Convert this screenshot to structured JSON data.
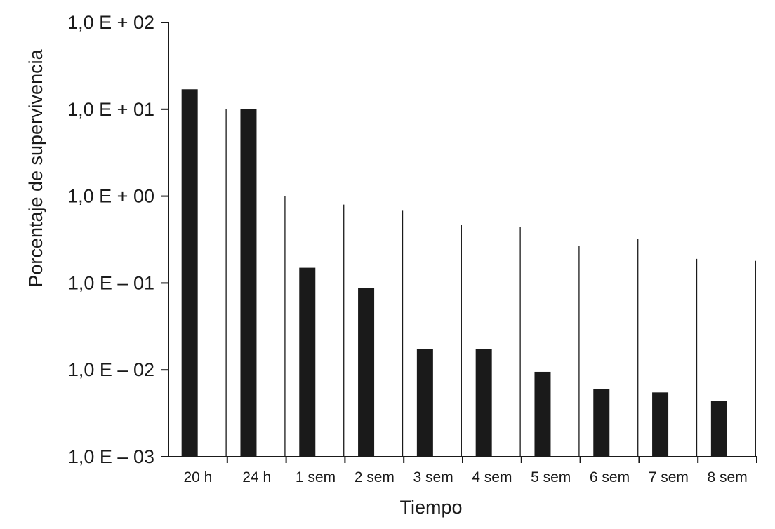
{
  "chart_data": {
    "type": "bar",
    "title": "",
    "xlabel": "Tiempo",
    "ylabel": "Porcentaje de supervivencia",
    "y_scale": "log",
    "ylim": [
      0.001,
      100
    ],
    "y_tick_values": [
      0.001,
      0.01,
      0.1,
      1,
      10,
      100
    ],
    "y_tick_labels": [
      "1,0 E – 03",
      "1,0 E – 02",
      "1,0 E – 01",
      "1,0 E + 00",
      "1,0 E + 01",
      "1,0 E + 02"
    ],
    "categories": [
      "20 h",
      "24 h",
      "1 sem",
      "2 sem",
      "3 sem",
      "4 sem",
      "5 sem",
      "6 sem",
      "7 sem",
      "8 sem"
    ],
    "series": [
      {
        "color": "#1a1a1a",
        "style": "thick",
        "values": [
          17,
          10,
          0.15,
          0.088,
          0.0175,
          0.0175,
          0.0095,
          0.006,
          0.0055,
          0.0044
        ]
      },
      {
        "color": "#1a1a1a",
        "style": "thin",
        "values": [
          10,
          1.0,
          0.8,
          0.68,
          0.47,
          0.44,
          0.27,
          0.32,
          0.19,
          0.18
        ]
      }
    ],
    "grid": false,
    "legend": "none"
  }
}
